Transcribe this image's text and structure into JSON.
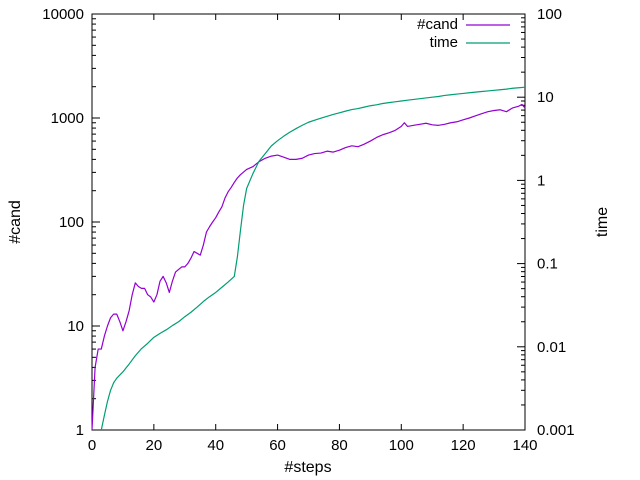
{
  "chart_data": {
    "type": "line",
    "xlabel": "#steps",
    "ylabel": "#cand",
    "y2label": "time",
    "xlim": [
      0,
      140
    ],
    "ylim": [
      1,
      10000
    ],
    "y2lim": [
      0.001,
      100
    ],
    "yscale": "log",
    "y2scale": "log",
    "grid": false,
    "legend_position": "top-right",
    "x_ticks": [
      "0",
      "20",
      "40",
      "60",
      "80",
      "100",
      "120",
      "140"
    ],
    "y_ticks": [
      "1",
      "10",
      "100",
      "1000",
      "10000"
    ],
    "y2_ticks": [
      "0.001",
      "0.01",
      "0.1",
      "1",
      "10",
      "100"
    ],
    "series": [
      {
        "name": "#cand",
        "axis": "left",
        "color": "#9400d3",
        "points": [
          [
            0,
            1
          ],
          [
            1,
            4
          ],
          [
            2,
            6
          ],
          [
            3,
            6
          ],
          [
            4,
            8
          ],
          [
            5,
            10
          ],
          [
            6,
            12
          ],
          [
            7,
            13
          ],
          [
            8,
            13
          ],
          [
            9,
            11
          ],
          [
            10,
            9
          ],
          [
            11,
            11
          ],
          [
            12,
            14
          ],
          [
            13,
            20
          ],
          [
            14,
            26
          ],
          [
            15,
            24
          ],
          [
            16,
            23
          ],
          [
            17,
            23
          ],
          [
            18,
            20
          ],
          [
            19,
            19
          ],
          [
            20,
            17
          ],
          [
            21,
            20
          ],
          [
            22,
            27
          ],
          [
            23,
            30
          ],
          [
            24,
            26
          ],
          [
            25,
            21
          ],
          [
            26,
            27
          ],
          [
            27,
            33
          ],
          [
            28,
            35
          ],
          [
            29,
            37
          ],
          [
            30,
            37
          ],
          [
            31,
            40
          ],
          [
            32,
            45
          ],
          [
            33,
            52
          ],
          [
            34,
            50
          ],
          [
            35,
            48
          ],
          [
            36,
            60
          ],
          [
            37,
            80
          ],
          [
            38,
            90
          ],
          [
            39,
            100
          ],
          [
            40,
            110
          ],
          [
            41,
            125
          ],
          [
            42,
            140
          ],
          [
            43,
            170
          ],
          [
            44,
            195
          ],
          [
            45,
            215
          ],
          [
            46,
            240
          ],
          [
            47,
            265
          ],
          [
            48,
            285
          ],
          [
            50,
            320
          ],
          [
            52,
            340
          ],
          [
            54,
            380
          ],
          [
            56,
            410
          ],
          [
            58,
            430
          ],
          [
            60,
            440
          ],
          [
            62,
            420
          ],
          [
            64,
            400
          ],
          [
            66,
            400
          ],
          [
            68,
            410
          ],
          [
            70,
            440
          ],
          [
            72,
            455
          ],
          [
            74,
            460
          ],
          [
            76,
            480
          ],
          [
            78,
            470
          ],
          [
            80,
            490
          ],
          [
            82,
            520
          ],
          [
            84,
            540
          ],
          [
            86,
            530
          ],
          [
            88,
            560
          ],
          [
            90,
            600
          ],
          [
            92,
            650
          ],
          [
            94,
            690
          ],
          [
            96,
            720
          ],
          [
            98,
            760
          ],
          [
            100,
            830
          ],
          [
            101,
            900
          ],
          [
            102,
            830
          ],
          [
            104,
            850
          ],
          [
            106,
            870
          ],
          [
            108,
            890
          ],
          [
            110,
            860
          ],
          [
            112,
            850
          ],
          [
            114,
            870
          ],
          [
            116,
            900
          ],
          [
            118,
            920
          ],
          [
            120,
            960
          ],
          [
            122,
            1000
          ],
          [
            124,
            1050
          ],
          [
            126,
            1100
          ],
          [
            128,
            1150
          ],
          [
            130,
            1180
          ],
          [
            132,
            1200
          ],
          [
            134,
            1150
          ],
          [
            136,
            1250
          ],
          [
            138,
            1300
          ],
          [
            139,
            1350
          ],
          [
            140,
            1250
          ]
        ]
      },
      {
        "name": "time",
        "axis": "right",
        "color": "#009e73",
        "points": [
          [
            3,
            0.001
          ],
          [
            4,
            0.0015
          ],
          [
            5,
            0.0022
          ],
          [
            6,
            0.003
          ],
          [
            7,
            0.0037
          ],
          [
            8,
            0.0042
          ],
          [
            10,
            0.005
          ],
          [
            12,
            0.0062
          ],
          [
            14,
            0.0078
          ],
          [
            16,
            0.0095
          ],
          [
            18,
            0.011
          ],
          [
            20,
            0.013
          ],
          [
            22,
            0.0145
          ],
          [
            24,
            0.016
          ],
          [
            26,
            0.018
          ],
          [
            28,
            0.02
          ],
          [
            30,
            0.023
          ],
          [
            32,
            0.026
          ],
          [
            34,
            0.03
          ],
          [
            36,
            0.035
          ],
          [
            38,
            0.04
          ],
          [
            40,
            0.045
          ],
          [
            42,
            0.052
          ],
          [
            44,
            0.06
          ],
          [
            46,
            0.07
          ],
          [
            47,
            0.12
          ],
          [
            48,
            0.25
          ],
          [
            49,
            0.5
          ],
          [
            50,
            0.8
          ],
          [
            52,
            1.2
          ],
          [
            54,
            1.7
          ],
          [
            56,
            2.1
          ],
          [
            58,
            2.6
          ],
          [
            60,
            3.0
          ],
          [
            62,
            3.4
          ],
          [
            64,
            3.8
          ],
          [
            66,
            4.2
          ],
          [
            68,
            4.6
          ],
          [
            70,
            5.0
          ],
          [
            72,
            5.3
          ],
          [
            74,
            5.6
          ],
          [
            76,
            5.9
          ],
          [
            78,
            6.2
          ],
          [
            80,
            6.5
          ],
          [
            82,
            6.8
          ],
          [
            84,
            7.1
          ],
          [
            86,
            7.3
          ],
          [
            88,
            7.6
          ],
          [
            90,
            7.9
          ],
          [
            92,
            8.1
          ],
          [
            94,
            8.4
          ],
          [
            96,
            8.6
          ],
          [
            98,
            8.8
          ],
          [
            100,
            9.0
          ],
          [
            102,
            9.2
          ],
          [
            104,
            9.4
          ],
          [
            106,
            9.6
          ],
          [
            108,
            9.8
          ],
          [
            110,
            10.0
          ],
          [
            112,
            10.2
          ],
          [
            114,
            10.5
          ],
          [
            116,
            10.7
          ],
          [
            118,
            10.9
          ],
          [
            120,
            11.1
          ],
          [
            122,
            11.3
          ],
          [
            124,
            11.5
          ],
          [
            126,
            11.7
          ],
          [
            128,
            11.9
          ],
          [
            130,
            12.1
          ],
          [
            132,
            12.3
          ],
          [
            134,
            12.5
          ],
          [
            136,
            12.8
          ],
          [
            138,
            13.0
          ],
          [
            140,
            13.2
          ]
        ]
      }
    ]
  }
}
